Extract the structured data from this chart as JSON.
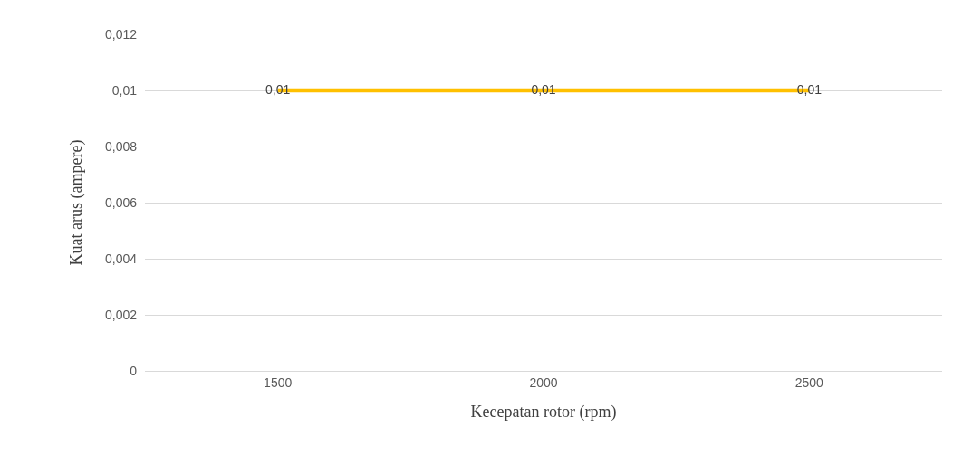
{
  "chart_data": {
    "type": "line",
    "xlabel": "Kecepatan rotor (rpm)",
    "ylabel": "Kuat arus (ampere)",
    "categories": [
      "1500",
      "2000",
      "2500"
    ],
    "series": [
      {
        "color": "#ffc000",
        "values": [
          0.01,
          0.01,
          0.01
        ],
        "value_labels": [
          "0,01",
          "0,01",
          "0,01"
        ]
      }
    ],
    "ylim": [
      0,
      0.012
    ],
    "yticks": [
      {
        "value": 0,
        "label": "0"
      },
      {
        "value": 0.002,
        "label": "0,002"
      },
      {
        "value": 0.004,
        "label": "0,004"
      },
      {
        "value": 0.006,
        "label": "0,006"
      },
      {
        "value": 0.008,
        "label": "0,008"
      },
      {
        "value": 0.01,
        "label": "0,01"
      },
      {
        "value": 0.012,
        "label": "0,012"
      }
    ],
    "grid": "y",
    "marker": "none",
    "line_style": "solid"
  }
}
